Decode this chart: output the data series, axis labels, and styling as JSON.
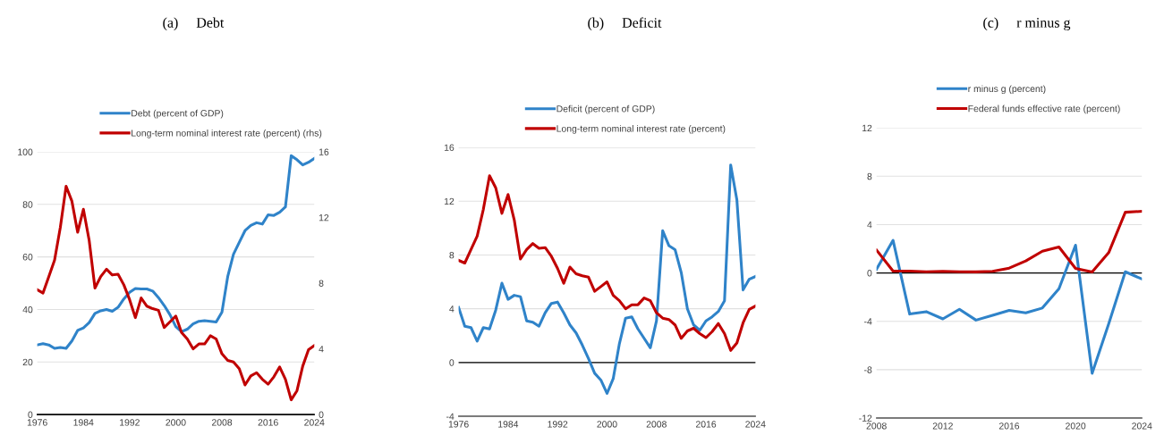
{
  "chart_data": [
    {
      "type": "line",
      "title": "(a)     Debt",
      "x": [
        1976,
        1977,
        1978,
        1979,
        1980,
        1981,
        1982,
        1983,
        1984,
        1985,
        1986,
        1987,
        1988,
        1989,
        1990,
        1991,
        1992,
        1993,
        1994,
        1995,
        1996,
        1997,
        1998,
        1999,
        2000,
        2001,
        2002,
        2003,
        2004,
        2005,
        2006,
        2007,
        2008,
        2009,
        2010,
        2011,
        2012,
        2013,
        2014,
        2015,
        2016,
        2017,
        2018,
        2019,
        2020,
        2021,
        2022,
        2023,
        2024
      ],
      "series": [
        {
          "name": "Debt (percent of GDP)",
          "color": "#2f83c9",
          "values": [
            26.5,
            27,
            26.5,
            25.2,
            25.5,
            25.2,
            28,
            32,
            33,
            35,
            38.5,
            39.5,
            40,
            39.3,
            40.8,
            44,
            46.5,
            48,
            47.8,
            47.8,
            47,
            44.5,
            41.5,
            38,
            33.5,
            31.5,
            32.5,
            34.5,
            35.5,
            35.7,
            35.5,
            35.2,
            39,
            52.5,
            61,
            65.5,
            70,
            72,
            73,
            72.5,
            76,
            75.8,
            77,
            79,
            98.5,
            97,
            95,
            96,
            97.5
          ]
        },
        {
          "name": "Long-term nominal interest rate (percent) (rhs)",
          "color": "#c00000",
          "axis": "y2",
          "values": [
            7.6,
            7.4,
            8.4,
            9.4,
            11.4,
            13.9,
            13.0,
            11.1,
            12.5,
            10.6,
            7.7,
            8.4,
            8.85,
            8.5,
            8.55,
            7.9,
            7.0,
            5.9,
            7.1,
            6.6,
            6.45,
            6.35,
            5.3,
            5.65,
            6.0,
            5.0,
            4.6,
            4.0,
            4.3,
            4.3,
            4.8,
            4.6,
            3.7,
            3.3,
            3.2,
            2.8,
            1.8,
            2.35,
            2.55,
            2.15,
            1.85,
            2.3,
            2.9,
            2.15,
            0.9,
            1.45,
            2.95,
            3.95,
            4.2
          ]
        }
      ],
      "xlim": [
        1976,
        2024
      ],
      "xticks": [
        1976,
        1984,
        1992,
        2000,
        2008,
        2016,
        2024
      ],
      "ylim": [
        0,
        100
      ],
      "yticks": [
        0,
        20,
        40,
        60,
        80,
        100
      ],
      "y2lim": [
        0,
        16
      ],
      "y2ticks": [
        0,
        4,
        8,
        12,
        16
      ],
      "grid": "y",
      "legend": "top"
    },
    {
      "type": "line",
      "title": "(b)     Deficit",
      "x": [
        1976,
        1977,
        1978,
        1979,
        1980,
        1981,
        1982,
        1983,
        1984,
        1985,
        1986,
        1987,
        1988,
        1989,
        1990,
        1991,
        1992,
        1993,
        1994,
        1995,
        1996,
        1997,
        1998,
        1999,
        2000,
        2001,
        2002,
        2003,
        2004,
        2005,
        2006,
        2007,
        2008,
        2009,
        2010,
        2011,
        2012,
        2013,
        2014,
        2015,
        2016,
        2017,
        2018,
        2019,
        2020,
        2021,
        2022,
        2023,
        2024
      ],
      "series": [
        {
          "name": "Deficit (percent of GDP)",
          "color": "#2f83c9",
          "values": [
            4.1,
            2.7,
            2.6,
            1.6,
            2.6,
            2.5,
            3.9,
            5.9,
            4.7,
            5.0,
            4.9,
            3.1,
            3.0,
            2.7,
            3.7,
            4.4,
            4.5,
            3.7,
            2.8,
            2.2,
            1.3,
            0.3,
            -0.8,
            -1.3,
            -2.3,
            -1.2,
            1.4,
            3.3,
            3.4,
            2.5,
            1.8,
            1.1,
            3.1,
            9.8,
            8.7,
            8.4,
            6.7,
            4.0,
            2.8,
            2.4,
            3.1,
            3.4,
            3.8,
            4.6,
            14.7,
            12.1,
            5.4,
            6.2,
            6.4
          ]
        },
        {
          "name": "Long-term nominal interest rate (percent)",
          "color": "#c00000",
          "values": [
            7.6,
            7.4,
            8.4,
            9.4,
            11.4,
            13.9,
            13.0,
            11.1,
            12.5,
            10.6,
            7.7,
            8.4,
            8.85,
            8.5,
            8.55,
            7.9,
            7.0,
            5.9,
            7.1,
            6.6,
            6.45,
            6.35,
            5.3,
            5.65,
            6.0,
            5.0,
            4.6,
            4.0,
            4.3,
            4.3,
            4.8,
            4.6,
            3.7,
            3.3,
            3.2,
            2.8,
            1.8,
            2.35,
            2.55,
            2.15,
            1.85,
            2.3,
            2.9,
            2.15,
            0.9,
            1.45,
            2.95,
            3.95,
            4.2
          ]
        }
      ],
      "xlim": [
        1976,
        2024
      ],
      "xticks": [
        1976,
        1984,
        1992,
        2000,
        2008,
        2016,
        2024
      ],
      "ylim": [
        -4,
        16
      ],
      "yticks": [
        -4,
        0,
        4,
        8,
        12,
        16
      ],
      "ref_lines": [
        {
          "axis": "y",
          "value": 0,
          "color": "#000000"
        }
      ],
      "grid": "y",
      "legend": "top"
    },
    {
      "type": "line",
      "title": "(c)     r minus g",
      "x": [
        2008,
        2009,
        2010,
        2011,
        2012,
        2013,
        2014,
        2015,
        2016,
        2017,
        2018,
        2019,
        2020,
        2021,
        2022,
        2023,
        2024
      ],
      "series": [
        {
          "name": "r minus g (percent)",
          "color": "#2f83c9",
          "values": [
            0.3,
            2.7,
            -3.4,
            -3.2,
            -3.8,
            -3.0,
            -3.9,
            -3.5,
            -3.1,
            -3.3,
            -2.9,
            -1.3,
            2.3,
            -8.3,
            -4.2,
            0.1,
            -0.5
          ]
        },
        {
          "name": "Federal funds effective rate (percent)",
          "color": "#c00000",
          "values": [
            1.9,
            0.15,
            0.15,
            0.1,
            0.14,
            0.1,
            0.09,
            0.13,
            0.4,
            1.0,
            1.8,
            2.15,
            0.38,
            0.08,
            1.68,
            5.02,
            5.1
          ]
        }
      ],
      "xlim": [
        2008,
        2024
      ],
      "xticks": [
        2008,
        2012,
        2016,
        2020,
        2024
      ],
      "ylim": [
        -12,
        12
      ],
      "yticks": [
        -12,
        -8,
        -4,
        0,
        4,
        8,
        12
      ],
      "ref_lines": [
        {
          "axis": "y",
          "value": 0,
          "color": "#000000"
        }
      ],
      "grid": "y",
      "legend": "top"
    }
  ]
}
